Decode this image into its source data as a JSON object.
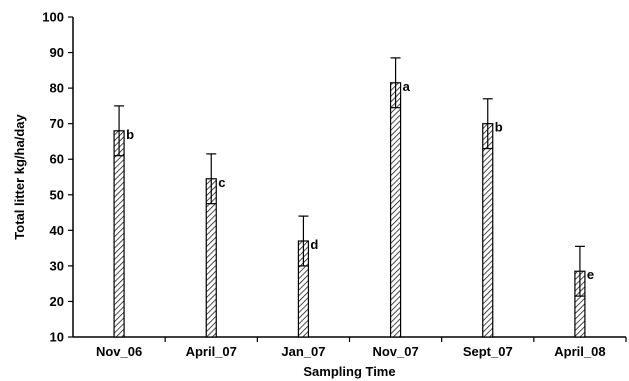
{
  "chart_data": {
    "type": "bar",
    "title": "",
    "xlabel": "Sampling Time",
    "ylabel": "Total litter kg/ha/day",
    "ylim": [
      10,
      100
    ],
    "yticks": [
      10,
      20,
      30,
      40,
      50,
      60,
      70,
      80,
      90,
      100
    ],
    "grid": false,
    "categories": [
      "Nov_06",
      "April_07",
      "Jan_07",
      "Nov_07",
      "Sept_07",
      "April_08"
    ],
    "values": [
      68,
      54.5,
      37,
      81.5,
      70,
      28.5
    ],
    "errors": [
      7,
      7,
      7,
      7,
      7,
      7
    ],
    "significance_letters": [
      "b",
      "c",
      "d",
      "a",
      "b",
      "e"
    ],
    "bar_fill": "hatched",
    "bar_color": "#000000"
  }
}
